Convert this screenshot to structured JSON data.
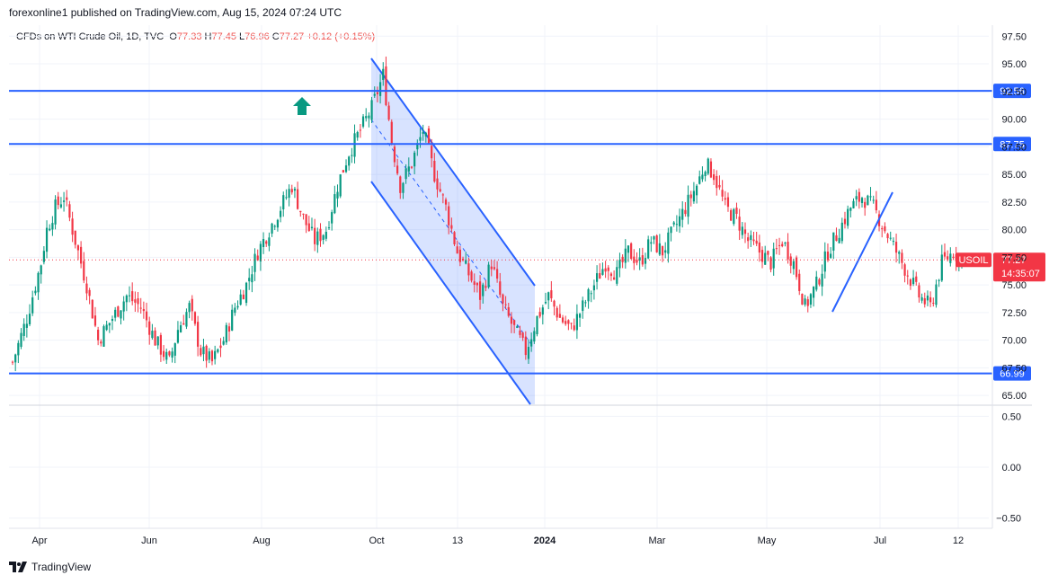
{
  "header": {
    "publish_text": "forexonline1 published on TradingView.com, Aug 15, 2024 07:24 UTC"
  },
  "legend": {
    "symbol": "CFDs on WTI Crude Oil, 1D, TVC",
    "o_label": "O",
    "o_value": "77.33",
    "h_label": "H",
    "h_value": "77.45",
    "l_label": "L",
    "l_value": "76.96",
    "c_label": "C",
    "c_value": "77.27",
    "change": "+0.12 (+0.15%)"
  },
  "footer": {
    "brand": "TradingView",
    "logo_icon": "tradingview-logo-icon"
  },
  "colors": {
    "up": "#089981",
    "down": "#f23645",
    "line": "#2962ff",
    "channel_fill": "#2962ff",
    "badge": "#2962ff",
    "price_badge": "#f23645"
  },
  "chart_data": [
    {
      "type": "candlestick",
      "title": "",
      "x_ticks": [
        "Apr",
        "Jun",
        "Aug",
        "Oct",
        "13",
        "2024",
        "Mar",
        "May",
        "Jul",
        "12"
      ],
      "y_ticks": [
        "97.50",
        "95.00",
        "92.50",
        "90.00",
        "87.50",
        "85.00",
        "82.50",
        "80.00",
        "77.50",
        "75.00",
        "72.50",
        "70.00",
        "67.50",
        "65.00"
      ],
      "ylim": [
        64.2,
        98.5
      ],
      "current_price": 77.27,
      "symbol_badge": "USOIL",
      "price_badge": "77.27",
      "countdown_badge": "14:35:07",
      "horizontal_levels": [
        {
          "value": 92.56,
          "label": "92.56"
        },
        {
          "value": 87.75,
          "label": "87.75"
        },
        {
          "value": 66.99,
          "label": "66.99"
        }
      ],
      "annotations": [
        "up-arrow-icon",
        "descending-channel",
        "trendline"
      ],
      "series": [
        {
          "name": "USOIL close",
          "path": [
            [
              0,
              68
            ],
            [
              5,
              72
            ],
            [
              10,
              77
            ],
            [
              12,
              80
            ],
            [
              15,
              82
            ],
            [
              18,
              83
            ],
            [
              22,
              79
            ],
            [
              26,
              75
            ],
            [
              30,
              70
            ],
            [
              35,
              72
            ],
            [
              40,
              74
            ],
            [
              45,
              73
            ],
            [
              50,
              70
            ],
            [
              55,
              68
            ],
            [
              58,
              71
            ],
            [
              62,
              73
            ],
            [
              66,
              69
            ],
            [
              70,
              68
            ],
            [
              74,
              70
            ],
            [
              78,
              73
            ],
            [
              82,
              75
            ],
            [
              86,
              78
            ],
            [
              90,
              80
            ],
            [
              94,
              82
            ],
            [
              98,
              84
            ],
            [
              102,
              81
            ],
            [
              106,
              79
            ],
            [
              110,
              80
            ],
            [
              114,
              84
            ],
            [
              118,
              87
            ],
            [
              122,
              89
            ],
            [
              126,
              91
            ],
            [
              130,
              94
            ],
            [
              133,
              88
            ],
            [
              136,
              84
            ],
            [
              140,
              86
            ],
            [
              144,
              89
            ],
            [
              148,
              85
            ],
            [
              152,
              82
            ],
            [
              156,
              78
            ],
            [
              160,
              76
            ],
            [
              164,
              74
            ],
            [
              168,
              77
            ],
            [
              172,
              73
            ],
            [
              176,
              71
            ],
            [
              180,
              69
            ],
            [
              184,
              72
            ],
            [
              188,
              74
            ],
            [
              192,
              72
            ],
            [
              196,
              71
            ],
            [
              200,
              73
            ],
            [
              204,
              75
            ],
            [
              208,
              77
            ],
            [
              212,
              76
            ],
            [
              216,
              78
            ],
            [
              220,
              77
            ],
            [
              224,
              79
            ],
            [
              228,
              78
            ],
            [
              232,
              80
            ],
            [
              236,
              82
            ],
            [
              240,
              84
            ],
            [
              243,
              86
            ],
            [
              246,
              85
            ],
            [
              250,
              82
            ],
            [
              254,
              81
            ],
            [
              258,
              79
            ],
            [
              262,
              78
            ],
            [
              266,
              77
            ],
            [
              270,
              79
            ],
            [
              274,
              77
            ],
            [
              278,
              73
            ],
            [
              282,
              75
            ],
            [
              286,
              78
            ],
            [
              290,
              80
            ],
            [
              294,
              82
            ],
            [
              298,
              83
            ],
            [
              302,
              82
            ],
            [
              306,
              80
            ],
            [
              310,
              78
            ],
            [
              314,
              76
            ],
            [
              318,
              74
            ],
            [
              322,
              73
            ],
            [
              326,
              77
            ],
            [
              330,
              78
            ],
            [
              333,
              77.27
            ]
          ]
        }
      ]
    },
    {
      "type": "line",
      "title": "",
      "y_ticks": [
        "0.50",
        "0.00",
        "−0.50"
      ],
      "ylim": [
        -0.6,
        0.6
      ],
      "series": []
    }
  ]
}
